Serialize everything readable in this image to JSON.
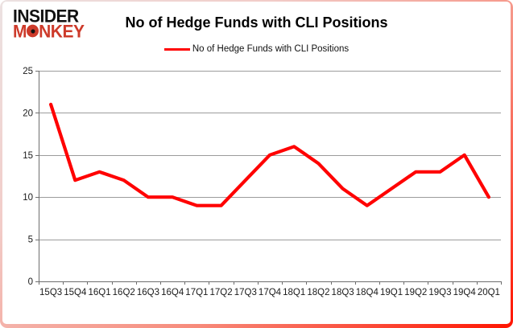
{
  "logo": {
    "line1": "INSIDER",
    "line2_pre": "M",
    "line2_post": "NKEY"
  },
  "header": {
    "title": "No of Hedge Funds with CLI Positions"
  },
  "legend": {
    "label": "No of Hedge Funds with CLI Positions"
  },
  "chart_data": {
    "type": "line",
    "title": "No of Hedge Funds with CLI Positions",
    "categories": [
      "15Q3",
      "15Q4",
      "16Q1",
      "16Q2",
      "16Q3",
      "16Q4",
      "17Q1",
      "17Q2",
      "17Q3",
      "17Q4",
      "18Q1",
      "18Q2",
      "18Q3",
      "18Q4",
      "19Q1",
      "19Q2",
      "19Q3",
      "19Q4",
      "20Q1"
    ],
    "series": [
      {
        "name": "No of Hedge Funds with CLI Positions",
        "color": "#ff0000",
        "values": [
          21,
          12,
          13,
          12,
          10,
          10,
          9,
          9,
          12,
          15,
          16,
          14,
          11,
          9,
          11,
          13,
          13,
          15,
          10
        ]
      }
    ],
    "xlabel": "",
    "ylabel": "",
    "ylim": [
      0,
      25
    ],
    "yticks": [
      0,
      5,
      10,
      15,
      20,
      25
    ],
    "grid": "horizontal",
    "legend_position": "top"
  },
  "colors": {
    "line": "#ff0000",
    "grid": "#9c9c9c",
    "axis": "#6e6e6e",
    "logo_black": "#111111",
    "logo_red": "#cd3a2a"
  }
}
